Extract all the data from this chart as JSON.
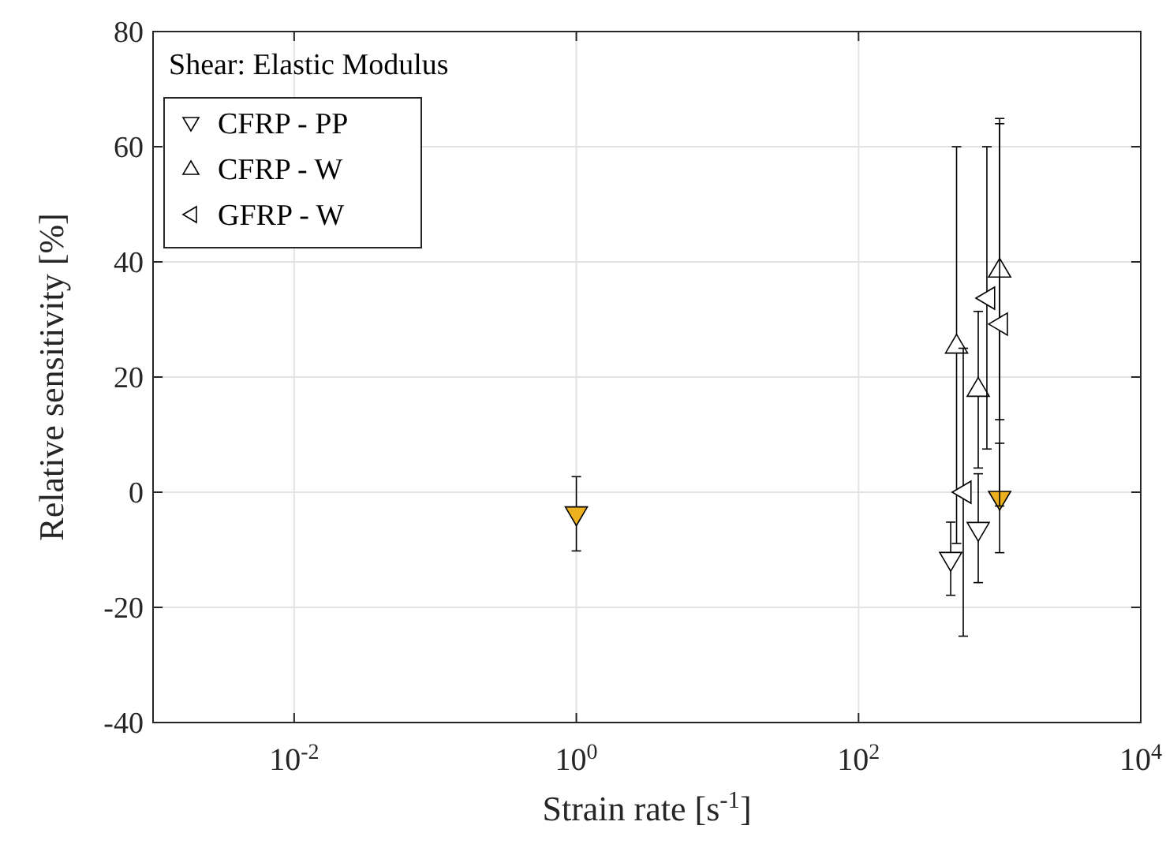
{
  "chart_data": {
    "type": "scatter",
    "title": "Shear: Elastic Modulus",
    "xlabel": "Strain rate [s$^{-1}$]",
    "ylabel": "Relative sensitivity [%]",
    "log": "x",
    "grid": true,
    "legend": "top left",
    "xlim": [
      0.001,
      10000
    ],
    "xticks": [
      {
        "value": 0.01,
        "label": "10$^{-2}$"
      },
      {
        "value": 1,
        "label": "10$^{0}$"
      },
      {
        "value": 100,
        "label": "10$^{2}$"
      },
      {
        "value": 10000,
        "label": "10$^{4}$"
      }
    ],
    "ylim": [
      -40,
      80
    ],
    "yticks": [
      -40,
      -20,
      0,
      20,
      40,
      60,
      80
    ],
    "series": [
      {
        "name": "CFRP - PP",
        "marker": "triangle-down",
        "color": "#ffffff",
        "x": [
          450,
          705
        ],
        "values": [
          -11.8,
          -6.6
        ],
        "errors": [
          [
            -17.9,
            -5.2
          ],
          [
            -15.7,
            3.2
          ]
        ]
      },
      {
        "marker": "triangle-down",
        "color": "#edb120",
        "x": [
          1,
          1000
        ],
        "values": [
          -3.9,
          -1.2
        ],
        "errors": [
          [
            -10.2,
            2.7
          ],
          [
            -10.5,
            8.5
          ]
        ]
      },
      {
        "name": "CFRP - W",
        "marker": "triangle",
        "color": "#ffffff",
        "x": [
          495,
          705,
          1000
        ],
        "values": [
          25.5,
          18,
          38.7
        ],
        "errors": [
          [
            -8.9,
            60
          ],
          [
            4.2,
            31.4
          ],
          [
            12.6,
            64.9
          ]
        ]
      },
      {
        "name": "GFRP - W",
        "marker": "triangle-left",
        "color": "#ffffff",
        "x": [
          552,
          812,
          1000
        ],
        "values": [
          0,
          33.7,
          29.2
        ],
        "errors": [
          [
            -25,
            25
          ],
          [
            7.5,
            60
          ],
          [
            -2.4,
            64
          ]
        ]
      }
    ]
  }
}
